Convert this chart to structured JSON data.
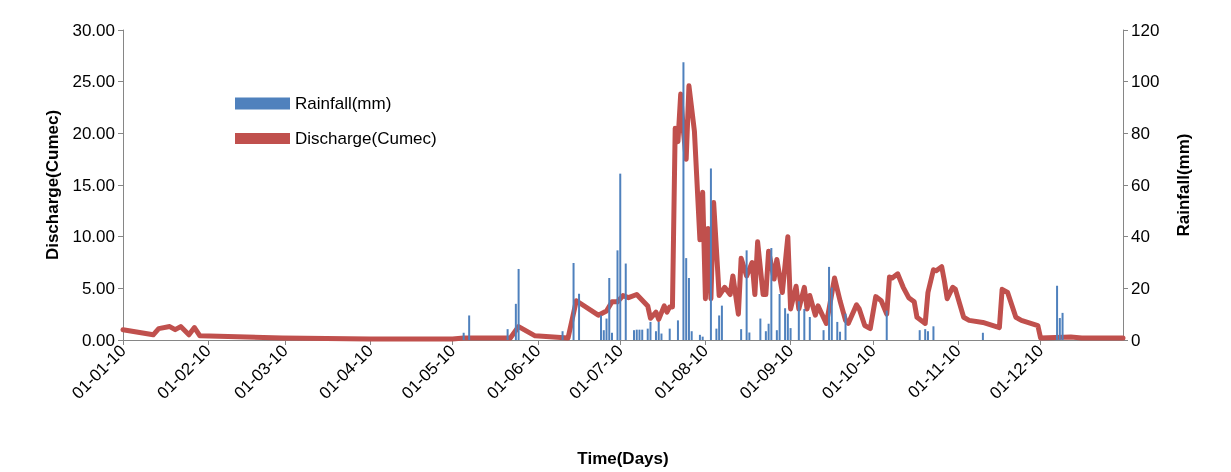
{
  "chart_data": {
    "type": "line",
    "xlabel": "Time(Days)",
    "ylabel": "Discharge(Cumec)",
    "y2label": "Rainfall(mm)",
    "xlim": [
      "2010-01-01",
      "2010-12-31"
    ],
    "xticks": [
      {
        "value": "2010-01-01",
        "label": "01-01-10"
      },
      {
        "value": "2010-02-01",
        "label": "01-02-10"
      },
      {
        "value": "2010-03-01",
        "label": "01-03-10"
      },
      {
        "value": "2010-04-01",
        "label": "01-04-10"
      },
      {
        "value": "2010-05-01",
        "label": "01-05-10"
      },
      {
        "value": "2010-06-01",
        "label": "01-06-10"
      },
      {
        "value": "2010-07-01",
        "label": "01-07-10"
      },
      {
        "value": "2010-08-01",
        "label": "01-08-10"
      },
      {
        "value": "2010-09-01",
        "label": "01-09-10"
      },
      {
        "value": "2010-10-01",
        "label": "01-10-10"
      },
      {
        "value": "2010-11-01",
        "label": "01-11-10"
      },
      {
        "value": "2010-12-01",
        "label": "01-12-10"
      }
    ],
    "ylim": [
      0,
      30
    ],
    "yticks": [
      {
        "value": 0,
        "label": "0.00"
      },
      {
        "value": 5,
        "label": "5.00"
      },
      {
        "value": 10,
        "label": "10.00"
      },
      {
        "value": 15,
        "label": "15.00"
      },
      {
        "value": 20,
        "label": "20.00"
      },
      {
        "value": 25,
        "label": "25.00"
      },
      {
        "value": 30,
        "label": "30.00"
      }
    ],
    "y2lim": [
      0,
      120
    ],
    "y2ticks": [
      0,
      20,
      40,
      60,
      80,
      100,
      120
    ],
    "grid": false,
    "legend": "top left",
    "marker": "none",
    "line_style": "solid",
    "series": [
      {
        "name": "Rainfall(mm)",
        "type": "bar",
        "axis": "y2",
        "color": "#4f81bd",
        "x": [
          "2010-05-05",
          "2010-05-07",
          "2010-05-21",
          "2010-05-24",
          "2010-05-25",
          "2010-06-10",
          "2010-06-14",
          "2010-06-16",
          "2010-06-24",
          "2010-06-25",
          "2010-06-26",
          "2010-06-27",
          "2010-06-28",
          "2010-06-30",
          "2010-07-01",
          "2010-07-03",
          "2010-07-06",
          "2010-07-07",
          "2010-07-08",
          "2010-07-09",
          "2010-07-11",
          "2010-07-12",
          "2010-07-14",
          "2010-07-15",
          "2010-07-16",
          "2010-07-19",
          "2010-07-22",
          "2010-07-24",
          "2010-07-25",
          "2010-07-26",
          "2010-07-27",
          "2010-07-30",
          "2010-07-31",
          "2010-08-03",
          "2010-08-05",
          "2010-08-06",
          "2010-08-07",
          "2010-08-14",
          "2010-08-16",
          "2010-08-17",
          "2010-08-21",
          "2010-08-23",
          "2010-08-24",
          "2010-08-25",
          "2010-08-27",
          "2010-08-28",
          "2010-08-30",
          "2010-08-31",
          "2010-09-01",
          "2010-09-04",
          "2010-09-06",
          "2010-09-08",
          "2010-09-13",
          "2010-09-15",
          "2010-09-16",
          "2010-09-18",
          "2010-09-19",
          "2010-09-21",
          "2010-10-06",
          "2010-10-18",
          "2010-10-20",
          "2010-10-21",
          "2010-10-23",
          "2010-11-10",
          "2010-12-07",
          "2010-12-08",
          "2010-12-09"
        ],
        "values": [
          2.8,
          9.5,
          4.2,
          14,
          27.5,
          3.4,
          29.8,
          17.9,
          9.5,
          3.8,
          8.3,
          24,
          2.8,
          34.7,
          64.4,
          29.6,
          3.8,
          4,
          4,
          4,
          4.4,
          7,
          3.4,
          7,
          2.5,
          4.4,
          7.6,
          107.5,
          31.7,
          24,
          3.4,
          2,
          1.3,
          66.4,
          4.4,
          9.5,
          13.3,
          4.2,
          34.7,
          2.9,
          8.3,
          3.4,
          6.3,
          35.6,
          3.8,
          17.8,
          12.3,
          10.2,
          4.6,
          15,
          12,
          8.9,
          3.8,
          28.3,
          20.3,
          7,
          3.2,
          10.2,
          11.4,
          3.8,
          4.2,
          3.4,
          5.3,
          2.8,
          21,
          8.5,
          10.5
        ]
      },
      {
        "name": "Discharge(Cumec)",
        "color": "#c0504d",
        "x": [
          "2010-01-01",
          "2010-01-12",
          "2010-01-14",
          "2010-01-18",
          "2010-01-20",
          "2010-01-22",
          "2010-01-25",
          "2010-01-27",
          "2010-01-29",
          "2010-02-28",
          "2010-04-01",
          "2010-05-01",
          "2010-05-05",
          "2010-05-22",
          "2010-05-25",
          "2010-05-31",
          "2010-06-12",
          "2010-06-15",
          "2010-06-23",
          "2010-06-26",
          "2010-06-28",
          "2010-06-30",
          "2010-07-02",
          "2010-07-04",
          "2010-07-07",
          "2010-07-11",
          "2010-07-12",
          "2010-07-14",
          "2010-07-15",
          "2010-07-17",
          "2010-07-18",
          "2010-07-19",
          "2010-07-20",
          "2010-07-21",
          "2010-07-22",
          "2010-07-23",
          "2010-07-24",
          "2010-07-25",
          "2010-07-26",
          "2010-07-28",
          "2010-07-30",
          "2010-07-31",
          "2010-08-01",
          "2010-08-02",
          "2010-08-03",
          "2010-08-04",
          "2010-08-06",
          "2010-08-08",
          "2010-08-10",
          "2010-08-11",
          "2010-08-13",
          "2010-08-14",
          "2010-08-16",
          "2010-08-18",
          "2010-08-19",
          "2010-08-20",
          "2010-08-22",
          "2010-08-23",
          "2010-08-24",
          "2010-08-26",
          "2010-08-27",
          "2010-08-29",
          "2010-08-31",
          "2010-09-01",
          "2010-09-03",
          "2010-09-04",
          "2010-09-06",
          "2010-09-07",
          "2010-09-08",
          "2010-09-10",
          "2010-09-11",
          "2010-09-14",
          "2010-09-15",
          "2010-09-17",
          "2010-09-19",
          "2010-09-21",
          "2010-09-22",
          "2010-09-25",
          "2010-09-26",
          "2010-09-28",
          "2010-09-30",
          "2010-10-02",
          "2010-10-04",
          "2010-10-06",
          "2010-10-07",
          "2010-10-08",
          "2010-10-10",
          "2010-10-12",
          "2010-10-14",
          "2010-10-16",
          "2010-10-17",
          "2010-10-20",
          "2010-10-21",
          "2010-10-23",
          "2010-10-24",
          "2010-10-26",
          "2010-10-27",
          "2010-10-28",
          "2010-10-30",
          "2010-10-31",
          "2010-11-03",
          "2010-11-05",
          "2010-11-10",
          "2010-11-16",
          "2010-11-17",
          "2010-11-19",
          "2010-11-22",
          "2010-11-24",
          "2010-11-30",
          "2010-12-01",
          "2010-12-12",
          "2010-12-16",
          "2010-12-31"
        ],
        "values": [
          1.0,
          0.5,
          1.1,
          1.3,
          1.0,
          1.3,
          0.5,
          1.2,
          0.4,
          0.2,
          0.1,
          0.1,
          0.2,
          0.2,
          1.3,
          0.4,
          0.2,
          3.8,
          2.4,
          2.8,
          3.7,
          3.7,
          4.3,
          4.1,
          4.4,
          3.3,
          2.1,
          2.7,
          2.0,
          3.3,
          2.7,
          3.2,
          3.2,
          20.5,
          19.2,
          23.8,
          20.2,
          17.5,
          24.6,
          20.2,
          9.7,
          14.3,
          4.0,
          10.8,
          4.0,
          13.3,
          4.3,
          5.1,
          4.4,
          6.2,
          2.5,
          7.9,
          6.2,
          7.5,
          4.4,
          9.5,
          4.4,
          4.4,
          8.6,
          5.9,
          7.8,
          4.6,
          10.0,
          3.0,
          5.2,
          3.0,
          5.1,
          3.0,
          4.3,
          2.4,
          3.3,
          1.6,
          3.0,
          6.0,
          3.8,
          1.9,
          1.6,
          3.4,
          3.0,
          1.4,
          1.1,
          4.2,
          3.8,
          2.5,
          6.1,
          6.0,
          6.4,
          5.1,
          4.1,
          3.7,
          2.2,
          1.6,
          4.6,
          6.8,
          6.7,
          7.1,
          5.7,
          4.0,
          5.1,
          4.9,
          2.2,
          1.9,
          1.7,
          1.2,
          4.9,
          4.6,
          2.2,
          1.9,
          1.4,
          0.2,
          0.3,
          0.2,
          0.2
        ]
      }
    ]
  }
}
